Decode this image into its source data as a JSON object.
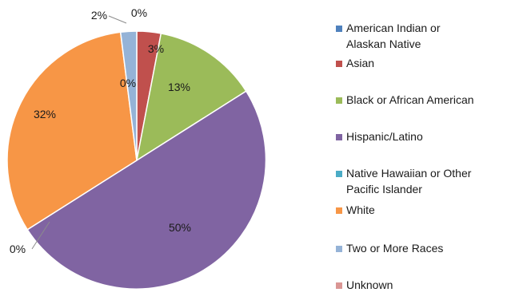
{
  "chart_data": {
    "type": "pie",
    "legend_position": "right",
    "slices": [
      {
        "label": "American Indian or Alaskan Native",
        "legend_lines": [
          "American Indian or",
          "Alaskan Native"
        ],
        "value": 0,
        "display": "0%",
        "color": "#4f81bd"
      },
      {
        "label": "Asian",
        "legend_lines": [
          "Asian"
        ],
        "value": 3,
        "display": "3%",
        "color": "#c0504d"
      },
      {
        "label": "Black or African American",
        "legend_lines": [
          "Black or African American"
        ],
        "value": 13,
        "display": "13%",
        "color": "#9bbb59"
      },
      {
        "label": "Hispanic/Latino",
        "legend_lines": [
          "Hispanic/Latino"
        ],
        "value": 50,
        "display": "50%",
        "color": "#8064a2"
      },
      {
        "label": "Native Hawaiian or Other Pacific Islander",
        "legend_lines": [
          "Native Hawaiian or Other",
          "Pacific Islander"
        ],
        "value": 0,
        "display": "0%",
        "color": "#4bacc6"
      },
      {
        "label": "White",
        "legend_lines": [
          "White"
        ],
        "value": 32,
        "display": "32%",
        "color": "#f79646"
      },
      {
        "label": "Two or More Races",
        "legend_lines": [
          "Two or More Races"
        ],
        "value": 2,
        "display": "2%",
        "color": "#95b3d7"
      },
      {
        "label": "Unknown",
        "legend_lines": [
          "Unknown"
        ],
        "value": 0,
        "display": "0%",
        "color": "#da9694"
      }
    ]
  }
}
